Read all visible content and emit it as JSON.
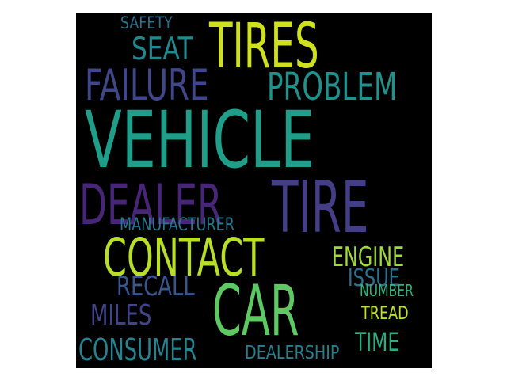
{
  "cloud": {
    "background": "#000000",
    "words": [
      {
        "text": "TIRES",
        "color": "#cfe11c"
      },
      {
        "text": "SAFETY",
        "color": "#2c728e"
      },
      {
        "text": "SEAT",
        "color": "#23888e"
      },
      {
        "text": "FAILURE",
        "color": "#3f4788"
      },
      {
        "text": "PROBLEM",
        "color": "#21918c"
      },
      {
        "text": "VEHICLE",
        "color": "#1f9e89"
      },
      {
        "text": "DEALER",
        "color": "#482677"
      },
      {
        "text": "TIRE",
        "color": "#433e85"
      },
      {
        "text": "MANUFACTURER",
        "color": "#2a788e"
      },
      {
        "text": "CONTACT",
        "color": "#b8de29"
      },
      {
        "text": "ENGINE",
        "color": "#a0da39"
      },
      {
        "text": "RECALL",
        "color": "#39568c"
      },
      {
        "text": "ISSUE",
        "color": "#2d708e"
      },
      {
        "text": "NUMBER",
        "color": "#2fb47c"
      },
      {
        "text": "CAR",
        "color": "#5ec962"
      },
      {
        "text": "MILES",
        "color": "#414487"
      },
      {
        "text": "TREAD",
        "color": "#c2df23"
      },
      {
        "text": "CONSUMER",
        "color": "#26828e"
      },
      {
        "text": "TIME",
        "color": "#28ae80"
      },
      {
        "text": "DEALERSHIP",
        "color": "#277f8e"
      }
    ]
  }
}
